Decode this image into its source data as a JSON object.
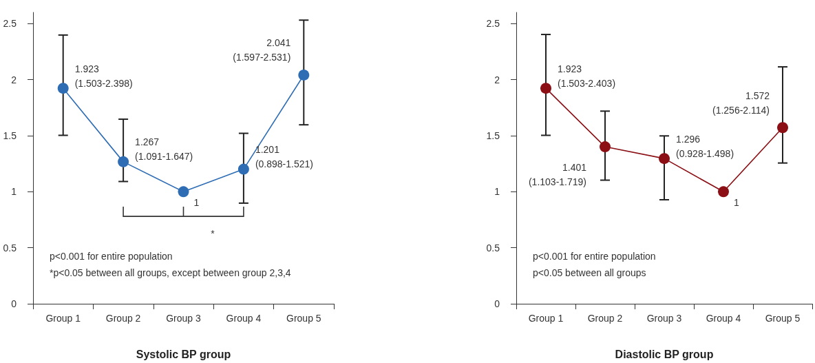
{
  "chart_data": [
    {
      "type": "line",
      "xlabel": "Systolic BP group",
      "categories": [
        "Group 1",
        "Group 2",
        "Group 3",
        "Group 4",
        "Group 5"
      ],
      "series": [
        {
          "color": "#2e6db4",
          "values": [
            1.923,
            1.267,
            1,
            1.201,
            2.041
          ],
          "errors": [
            [
              1.503,
              2.398
            ],
            [
              1.091,
              1.647
            ],
            null,
            [
              0.898,
              1.521
            ],
            [
              1.597,
              2.531
            ]
          ],
          "value_labels": [
            "1.923\n(1.503-2.398)",
            "1.267\n(1.091-1.647)",
            "1",
            "1.201\n(0.898-1.521)",
            "2.041\n(1.597-2.531)"
          ]
        }
      ],
      "ylim": [
        0,
        2.6
      ],
      "yticks": [
        0,
        0.5,
        1,
        1.5,
        2,
        2.5
      ],
      "grid": false,
      "marker": "circle",
      "line_style": "solid",
      "annotations": [
        "p<0.001 for entire population",
        "*p<0.05 between all groups, except between group 2,3,4",
        "*"
      ]
    },
    {
      "type": "line",
      "xlabel": "Diastolic BP group",
      "categories": [
        "Group 1",
        "Group 2",
        "Group 3",
        "Group 4",
        "Group 5"
      ],
      "series": [
        {
          "color": "#8b0f14",
          "values": [
            1.923,
            1.401,
            1.296,
            1,
            1.572
          ],
          "errors": [
            [
              1.503,
              2.403
            ],
            [
              1.103,
              1.719
            ],
            [
              0.928,
              1.498
            ],
            null,
            [
              1.256,
              2.114
            ]
          ],
          "value_labels": [
            "1.923\n(1.503-2.403)",
            "1.401\n(1.103-1.719)",
            "1.296\n(0.928-1.498)",
            "1",
            "1.572\n(1.256-2.114)"
          ]
        }
      ],
      "ylim": [
        0,
        2.6
      ],
      "yticks": [
        0,
        0.5,
        1,
        1.5,
        2,
        2.5
      ],
      "grid": false,
      "marker": "circle",
      "line_style": "solid",
      "annotations": [
        "p<0.001 for entire population",
        "p<0.05 between all groups"
      ]
    }
  ]
}
